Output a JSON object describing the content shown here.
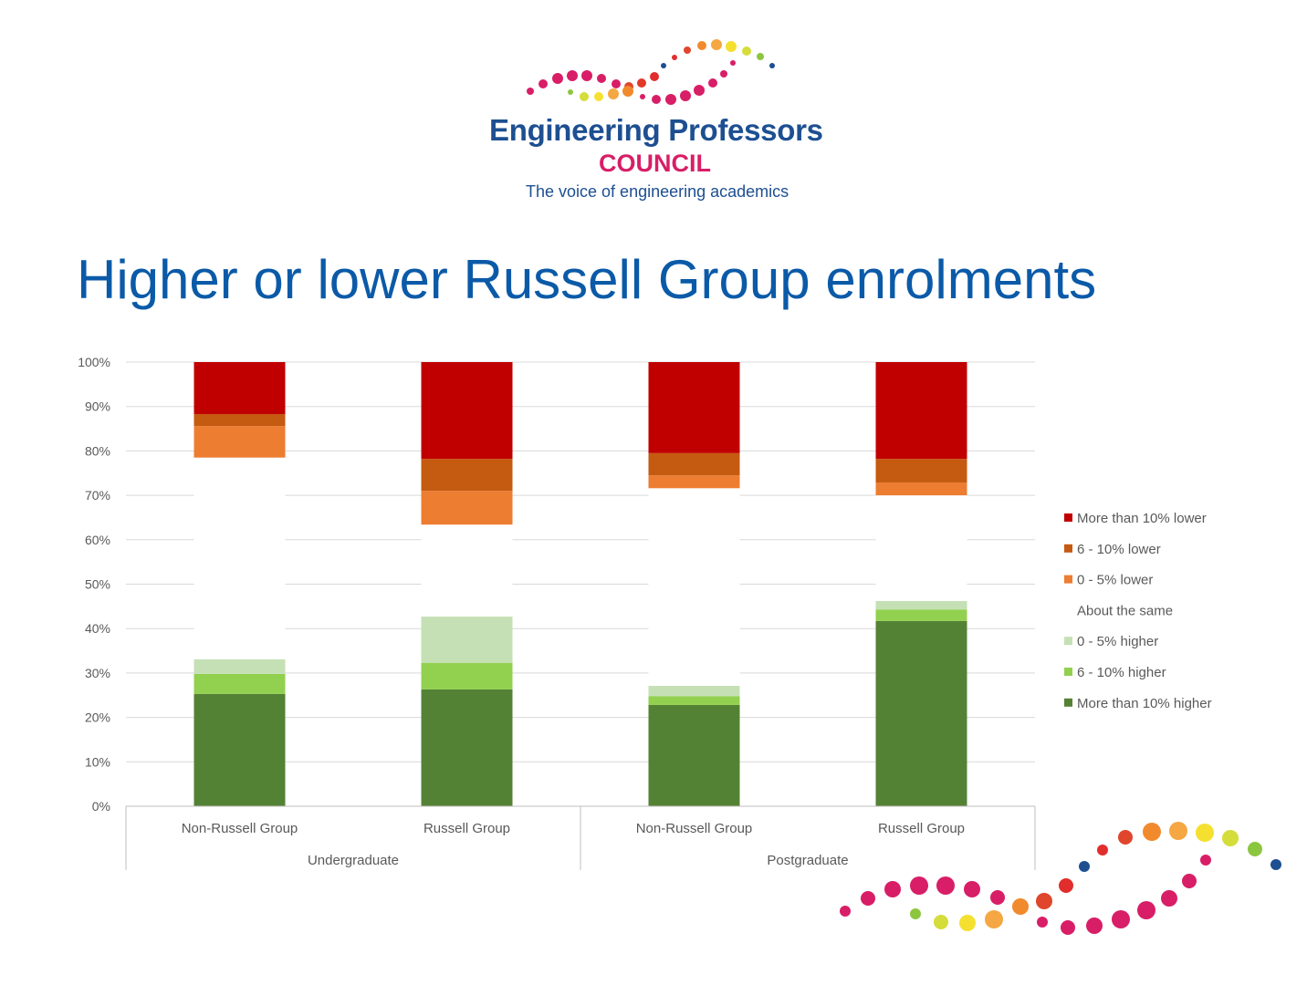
{
  "logo": {
    "name": "Engineering Professors",
    "subname": "COUNCIL",
    "tagline": "The voice of engineering academics"
  },
  "slide": {
    "title": "Higher or lower Russell Group enrolments"
  },
  "colors": {
    "title": "#0b5aa8",
    "logo_blue": "#1d4f91",
    "logo_pink": "#d81e67"
  },
  "chart_data": {
    "type": "bar",
    "stacked": true,
    "percent_stacked": true,
    "categories": [
      "Non-Russell Group",
      "Russell Group",
      "Non-Russell Group",
      "Russell Group"
    ],
    "groups": [
      {
        "label": "Undergraduate",
        "categories": [
          0,
          1
        ]
      },
      {
        "label": "Postgraduate",
        "categories": [
          2,
          3
        ]
      }
    ],
    "ylim": [
      0,
      100
    ],
    "yticks": [
      "0%",
      "10%",
      "20%",
      "30%",
      "40%",
      "50%",
      "60%",
      "70%",
      "80%",
      "90%",
      "100%"
    ],
    "grid": true,
    "legend_position": "right",
    "series": [
      {
        "name": "More than 10% higher",
        "color": "#548235",
        "values": [
          25.3,
          26.3,
          22.8,
          41.7
        ]
      },
      {
        "name": "6 - 10% higher",
        "color": "#92d050",
        "values": [
          4.5,
          6.0,
          2.0,
          2.6
        ]
      },
      {
        "name": "0 - 5% higher",
        "color": "#c5e0b4",
        "values": [
          3.3,
          10.4,
          2.3,
          1.9
        ]
      },
      {
        "name": "About the same",
        "color": "#ffffff",
        "values": [
          45.4,
          20.7,
          44.5,
          23.8
        ]
      },
      {
        "name": "0 - 5% lower",
        "color": "#ed7d31",
        "values": [
          7.1,
          7.6,
          2.9,
          2.9
        ]
      },
      {
        "name": "6 - 10% lower",
        "color": "#c55a11",
        "values": [
          2.7,
          7.2,
          5.0,
          5.3
        ]
      },
      {
        "name": "More than 10% lower",
        "color": "#c00000",
        "values": [
          11.7,
          21.8,
          20.5,
          21.8
        ]
      }
    ]
  }
}
